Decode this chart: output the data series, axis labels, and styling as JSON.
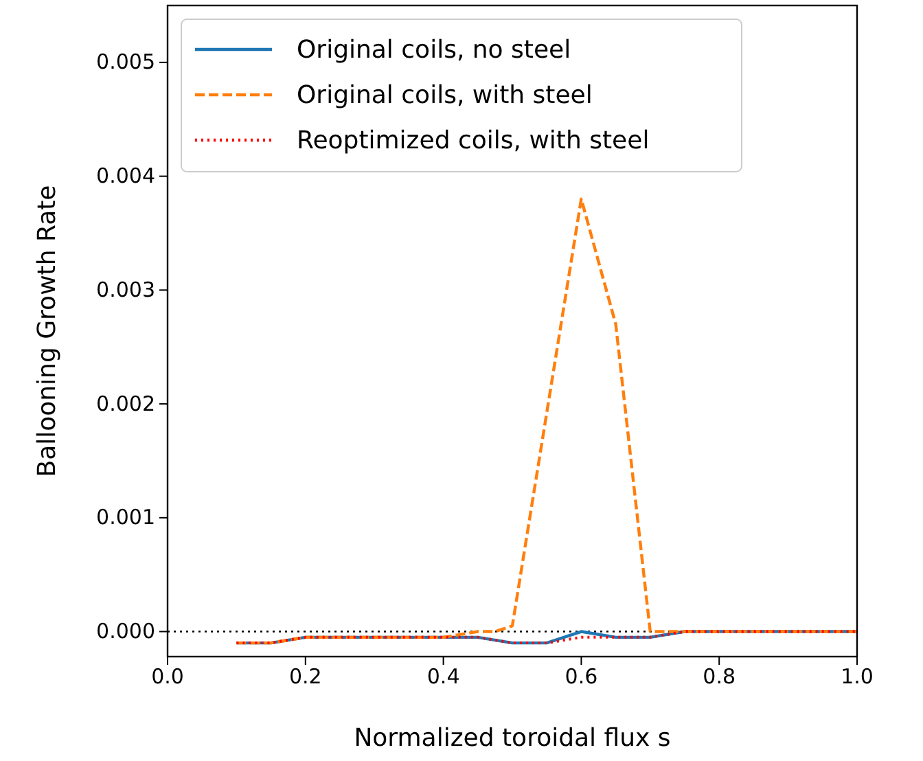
{
  "chart_data": {
    "type": "line",
    "xlabel": "Normalized toroidal flux s",
    "ylabel": "Ballooning Growth Rate",
    "xlim": [
      0,
      1
    ],
    "xticks": [
      {
        "value": 0,
        "label": "0.0"
      },
      {
        "value": 0.2,
        "label": "0.2"
      },
      {
        "value": 0.4,
        "label": "0.4"
      },
      {
        "value": 0.6,
        "label": "0.6"
      },
      {
        "value": 0.8,
        "label": "0.8"
      },
      {
        "value": 1,
        "label": "1.0"
      }
    ],
    "ylim": [
      -0.00022,
      0.0055
    ],
    "yticks": [
      {
        "value": 0,
        "label": "0.000"
      },
      {
        "value": 0.001,
        "label": "0.001"
      },
      {
        "value": 0.002,
        "label": "0.002"
      },
      {
        "value": 0.003,
        "label": "0.003"
      },
      {
        "value": 0.004,
        "label": "0.004"
      },
      {
        "value": 0.005,
        "label": "0.005"
      }
    ],
    "legend": "top left",
    "grid": false,
    "ref_lines": [
      {
        "axis": "y",
        "value": 0,
        "color": "#000000",
        "line_style": "dotted"
      }
    ],
    "series": [
      {
        "name": "Original coils, no steel",
        "color": "#1f77b4",
        "line_style": "solid",
        "x": [
          0.1,
          0.15,
          0.2,
          0.25,
          0.3,
          0.35,
          0.4,
          0.45,
          0.5,
          0.55,
          0.6,
          0.65,
          0.7,
          0.75,
          0.8,
          0.85,
          0.9,
          0.95,
          1.0
        ],
        "values": [
          -0.0001,
          -0.0001,
          -5e-05,
          -5e-05,
          -5e-05,
          -5e-05,
          -5e-05,
          -5e-05,
          -0.0001,
          -0.0001,
          0,
          -5e-05,
          -5e-05,
          0,
          0,
          0,
          0,
          0,
          0
        ]
      },
      {
        "name": "Original coils, with steel",
        "color": "#ff7f0e",
        "line_style": "dashed",
        "x": [
          0.1,
          0.15,
          0.2,
          0.25,
          0.3,
          0.35,
          0.4,
          0.45,
          0.475,
          0.5,
          0.6,
          0.65,
          0.7,
          0.75,
          0.8,
          0.85,
          0.9,
          0.95,
          1.0
        ],
        "values": [
          -0.0001,
          -0.0001,
          -5e-05,
          -5e-05,
          -5e-05,
          -5e-05,
          -5e-05,
          0,
          0,
          5e-05,
          0.0038,
          0.0027,
          0,
          0,
          0,
          0,
          0,
          0,
          0
        ]
      },
      {
        "name": "Reoptimized coils, with steel",
        "color": "#ff0000",
        "line_style": "dotted",
        "x": [
          0.1,
          0.15,
          0.2,
          0.25,
          0.3,
          0.35,
          0.4,
          0.45,
          0.5,
          0.55,
          0.6,
          0.65,
          0.7,
          0.75,
          0.8,
          0.85,
          0.9,
          0.95,
          1.0
        ],
        "values": [
          -0.0001,
          -0.0001,
          -5e-05,
          -5e-05,
          -5e-05,
          -5e-05,
          -5e-05,
          -5e-05,
          -0.0001,
          -0.0001,
          -5e-05,
          -5e-05,
          -5e-05,
          0,
          0,
          0,
          0,
          0,
          0
        ]
      }
    ]
  }
}
